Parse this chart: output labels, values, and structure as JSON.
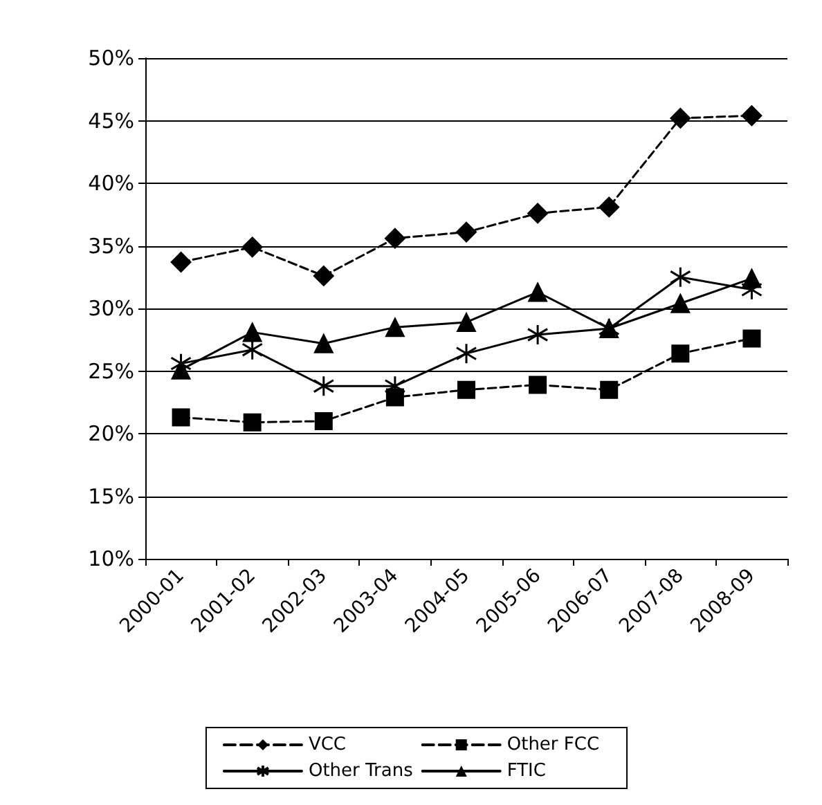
{
  "chart_data": {
    "type": "line",
    "categories": [
      "2000-01",
      "2001-02",
      "2002-03",
      "2003-04",
      "2004-05",
      "2005-06",
      "2006-07",
      "2007-08",
      "2008-09"
    ],
    "series": [
      {
        "name": "VCC",
        "color": "#000000",
        "marker": "diamond",
        "line_style": "dashed",
        "values": [
          33.7,
          34.9,
          32.6,
          35.6,
          36.1,
          37.6,
          38.1,
          45.2,
          45.4
        ]
      },
      {
        "name": "Other FCC",
        "color": "#000000",
        "marker": "square",
        "line_style": "dashed",
        "values": [
          21.3,
          20.9,
          21.0,
          22.9,
          23.5,
          23.9,
          23.5,
          26.4,
          27.6
        ]
      },
      {
        "name": "Other Trans",
        "color": "#000000",
        "marker": "cross",
        "line_style": "solid",
        "values": [
          25.6,
          26.7,
          23.8,
          23.8,
          26.4,
          27.9,
          28.4,
          32.5,
          31.5
        ]
      },
      {
        "name": "FTIC",
        "color": "#000000",
        "marker": "triangle",
        "line_style": "solid",
        "values": [
          25.1,
          28.1,
          27.2,
          28.5,
          28.9,
          31.3,
          28.4,
          30.4,
          32.4
        ]
      }
    ],
    "ylim": [
      10,
      50
    ],
    "yticks": [
      {
        "value": 10,
        "label": "10%"
      },
      {
        "value": 15,
        "label": "15%"
      },
      {
        "value": 20,
        "label": "20%"
      },
      {
        "value": 25,
        "label": "25%"
      },
      {
        "value": 30,
        "label": "30%"
      },
      {
        "value": 35,
        "label": "35%"
      },
      {
        "value": 40,
        "label": "40%"
      },
      {
        "value": 45,
        "label": "45%"
      },
      {
        "value": 50,
        "label": "50%"
      }
    ],
    "grid": "y",
    "legend": "bottom"
  }
}
